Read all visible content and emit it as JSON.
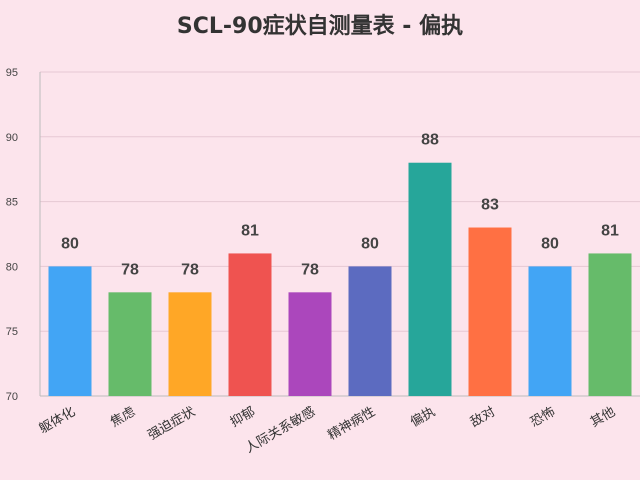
{
  "chart_data": {
    "type": "bar",
    "title": "SCL-90症状自测量表 - 偏执",
    "categories": [
      "躯体化",
      "焦虑",
      "强迫症状",
      "抑郁",
      "人际关系敏感",
      "精神病性",
      "偏执",
      "敌对",
      "恐怖",
      "其他"
    ],
    "values": [
      80,
      78,
      78,
      81,
      78,
      80,
      88,
      83,
      80,
      81
    ],
    "colors": [
      "#42a5f5",
      "#66bb6a",
      "#ffa726",
      "#ef5350",
      "#ab47bc",
      "#5c6bc0",
      "#26a69a",
      "#ff7043",
      "#42a5f5",
      "#66bb6a"
    ],
    "ylim": [
      70,
      95
    ],
    "yticks": [
      70,
      75,
      80,
      85,
      90,
      95
    ],
    "xlabel": "",
    "ylabel": "",
    "grid": true,
    "background": "#fce4ec"
  }
}
